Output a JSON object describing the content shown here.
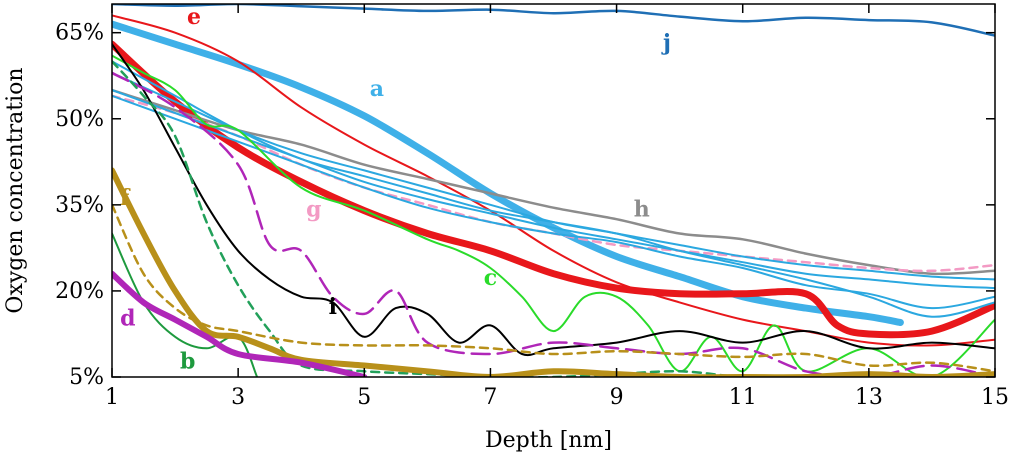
{
  "chart_data": {
    "type": "line",
    "xlabel": "Depth [nm]",
    "ylabel": "Oxygen concentration",
    "xlim": [
      1,
      15
    ],
    "ylim": [
      5,
      70
    ],
    "x_ticks": [
      1,
      3,
      5,
      7,
      9,
      11,
      13,
      15
    ],
    "y_ticks": [
      5,
      20,
      35,
      50,
      65
    ],
    "y_tick_labels": [
      "5%",
      "20%",
      "35%",
      "50%",
      "65%"
    ],
    "grid": false,
    "legend": "none",
    "series": [
      {
        "name": "j",
        "color": "#1f6fb5",
        "width": 2.5,
        "dash": "",
        "label_at": [
          9.8,
          62
        ],
        "x": [
          1,
          2,
          3,
          4,
          5,
          6,
          7,
          8,
          9,
          10,
          11,
          12,
          13,
          14,
          15
        ],
        "y": [
          70,
          69.7,
          70,
          69.6,
          69.2,
          68.8,
          69.0,
          68.4,
          68.8,
          67.8,
          67.0,
          67.6,
          67.2,
          66.8,
          64.5
        ]
      },
      {
        "name": "a",
        "color": "#3fb0e8",
        "width": 7,
        "dash": "",
        "label_at": [
          5.2,
          54
        ],
        "x": [
          1,
          2,
          3,
          4,
          5,
          6,
          7,
          8,
          9,
          10,
          11,
          12,
          13,
          13.5
        ],
        "y": [
          66.5,
          63,
          59.5,
          55.5,
          50.5,
          44,
          37,
          31,
          26,
          22.5,
          19,
          17,
          15.5,
          14.5
        ]
      },
      {
        "name": "e",
        "color": "#e8171b",
        "width": 2,
        "dash": "",
        "label_at": [
          2.3,
          66.5
        ],
        "x": [
          1,
          2,
          3,
          4,
          5,
          6,
          7,
          8,
          9,
          10,
          11,
          12,
          13,
          14,
          15
        ],
        "y": [
          68,
          65,
          60,
          52,
          45.5,
          40,
          34,
          27,
          21.5,
          18,
          15,
          13,
          11,
          10.5,
          11.5
        ]
      },
      {
        "name": "",
        "color": "#e8171b",
        "width": 7,
        "dash": "",
        "label_at": null,
        "x": [
          1,
          2,
          3,
          4,
          5,
          6,
          7,
          8,
          9,
          10,
          11,
          12,
          12.5,
          13,
          14,
          15
        ],
        "y": [
          63,
          53,
          45,
          39,
          34,
          30,
          27,
          23,
          20.5,
          19.5,
          19.5,
          19.5,
          14,
          12.5,
          13,
          17.5
        ]
      },
      {
        "name": "h",
        "color": "#8c8c8c",
        "width": 2.5,
        "dash": "",
        "label_at": [
          9.4,
          33
        ],
        "x": [
          1,
          2,
          3,
          4,
          5,
          6,
          7,
          8,
          9,
          10,
          11,
          12,
          13,
          14,
          15
        ],
        "y": [
          55,
          51.5,
          48,
          45.5,
          42,
          39.5,
          37,
          34.5,
          32.5,
          30,
          29,
          26.5,
          24.5,
          23,
          23.5
        ]
      },
      {
        "name": "g",
        "color": "#f39ac4",
        "width": 2.5,
        "dash": "8,6",
        "label_at": [
          4.2,
          33
        ],
        "x": [
          1,
          2,
          3,
          4,
          5,
          6,
          7,
          8,
          9,
          10,
          11,
          12,
          13,
          14,
          15
        ],
        "y": [
          54,
          51,
          47,
          42,
          38,
          35,
          32,
          30,
          28,
          27,
          26,
          25,
          24,
          23.5,
          24.5
        ]
      },
      {
        "name": "",
        "color": "#2ba8e0",
        "width": 2,
        "dash": "",
        "label_at": null,
        "x": [
          1,
          2,
          3,
          4,
          5,
          6,
          7,
          8,
          9,
          10,
          11,
          12,
          13,
          14,
          15
        ],
        "y": [
          58,
          53,
          48,
          44,
          41,
          38,
          35,
          32,
          30,
          28,
          26,
          24.5,
          23.5,
          22.5,
          22
        ]
      },
      {
        "name": "",
        "color": "#2ba8e0",
        "width": 2,
        "dash": "",
        "label_at": null,
        "x": [
          1,
          2,
          3,
          4,
          5,
          6,
          7,
          8,
          9,
          10,
          11,
          12,
          13,
          14,
          15
        ],
        "y": [
          55,
          51,
          47,
          43,
          39,
          36,
          33.5,
          31,
          29,
          27,
          25,
          23,
          22,
          21,
          20.5
        ]
      },
      {
        "name": "",
        "color": "#2ba8e0",
        "width": 2,
        "dash": "",
        "label_at": null,
        "x": [
          1,
          2,
          3,
          4,
          5,
          6,
          7,
          8,
          9,
          10,
          11,
          12,
          13,
          14,
          15
        ],
        "y": [
          54,
          50,
          46,
          42,
          38,
          34.5,
          32,
          30,
          28.5,
          26,
          24,
          21,
          19.5,
          17,
          19
        ]
      },
      {
        "name": "",
        "color": "#2ba8e0",
        "width": 2,
        "dash": "",
        "label_at": null,
        "x": [
          1,
          2,
          3,
          4,
          5,
          6,
          7,
          8,
          9,
          10,
          11,
          12,
          13,
          14,
          15
        ],
        "y": [
          60,
          54,
          48,
          43,
          40,
          37,
          34,
          32,
          30,
          27,
          24.5,
          22,
          19,
          15.5,
          18
        ]
      },
      {
        "name": "c",
        "color": "#2adb2a",
        "width": 2,
        "dash": "",
        "label_at": [
          7.0,
          21
        ],
        "x": [
          1,
          1.5,
          2,
          2.5,
          3,
          4,
          5,
          6,
          6.5,
          7,
          7.5,
          8,
          8.5,
          9,
          9.5,
          10,
          10.5,
          11,
          11.5,
          12,
          13,
          14,
          15
        ],
        "y": [
          61,
          58,
          55,
          49,
          48,
          38,
          34,
          29,
          27,
          24,
          19,
          13,
          19,
          19,
          14,
          6,
          12,
          6,
          14,
          6,
          10,
          5,
          15
        ]
      },
      {
        "name": "i",
        "color": "#000000",
        "width": 2,
        "dash": "",
        "label_at": [
          4.5,
          16
        ],
        "x": [
          1,
          1.5,
          2,
          2.5,
          3,
          3.5,
          4,
          4.5,
          5,
          5.5,
          6,
          6.5,
          7,
          7.5,
          8,
          9,
          10,
          11,
          12,
          13,
          14,
          15
        ],
        "y": [
          63,
          55,
          45,
          35,
          27,
          22,
          19,
          18,
          12,
          17,
          16,
          11,
          14,
          9,
          10,
          11,
          13,
          11,
          13,
          10,
          11,
          10
        ]
      },
      {
        "name": "",
        "color": "#b026b8",
        "width": 2.5,
        "dash": "18,8",
        "label_at": null,
        "x": [
          1,
          2,
          3,
          3.5,
          4,
          4.5,
          5,
          5.5,
          6,
          7,
          8,
          9,
          10,
          11,
          12,
          13,
          14,
          15
        ],
        "y": [
          58,
          52,
          42,
          28,
          27,
          19,
          16,
          20,
          11,
          9,
          11,
          10,
          9,
          10,
          6,
          5,
          7,
          5
        ]
      },
      {
        "name": "",
        "color": "#22a05a",
        "width": 2.5,
        "dash": "8,6",
        "label_at": null,
        "x": [
          1,
          1.5,
          2,
          2.5,
          3,
          3.5,
          4,
          5,
          6,
          7,
          8,
          9,
          10,
          11,
          12,
          13,
          14,
          15
        ],
        "y": [
          60,
          54,
          47,
          32,
          21,
          13,
          7,
          6,
          5.5,
          5,
          5,
          5.5,
          6,
          5,
          5,
          5,
          5,
          5
        ]
      },
      {
        "name": "b",
        "color": "#1e9a3e",
        "width": 2,
        "dash": "",
        "label_at": [
          2.2,
          6.5
        ],
        "x": [
          1,
          1.5,
          2,
          2.5,
          3,
          3.3
        ],
        "y": [
          30,
          18,
          12,
          10,
          12,
          5
        ]
      },
      {
        "name": "",
        "color": "#b8901a",
        "width": 2.5,
        "dash": "8,6",
        "label_at": null,
        "x": [
          1,
          1.5,
          2,
          2.5,
          3,
          4,
          5,
          6,
          7,
          8,
          9,
          10,
          11,
          12,
          13,
          14,
          15
        ],
        "y": [
          35,
          23,
          17,
          14,
          13,
          11,
          10.5,
          10.5,
          10,
          9,
          9.5,
          9,
          8.5,
          9,
          7,
          7.5,
          6
        ]
      },
      {
        "name": "f",
        "color": "#b8901a",
        "width": 6,
        "dash": "",
        "label_at": [
          1.2,
          35
        ],
        "x": [
          1,
          1.5,
          2,
          2.5,
          3,
          3.5,
          4,
          5,
          6,
          7,
          8,
          9,
          10,
          11,
          12,
          13,
          14,
          15
        ],
        "y": [
          41,
          30,
          20,
          13,
          12,
          10,
          8,
          7,
          6,
          5,
          6,
          5.5,
          5,
          5,
          5,
          5.5,
          5,
          5.5
        ]
      },
      {
        "name": "d",
        "color": "#b026b8",
        "width": 6,
        "dash": "",
        "label_at": [
          1.25,
          14
        ],
        "x": [
          1,
          1.5,
          2,
          2.5,
          3,
          4,
          5
        ],
        "y": [
          23,
          18,
          15,
          12,
          9,
          7.5,
          5
        ]
      }
    ]
  }
}
